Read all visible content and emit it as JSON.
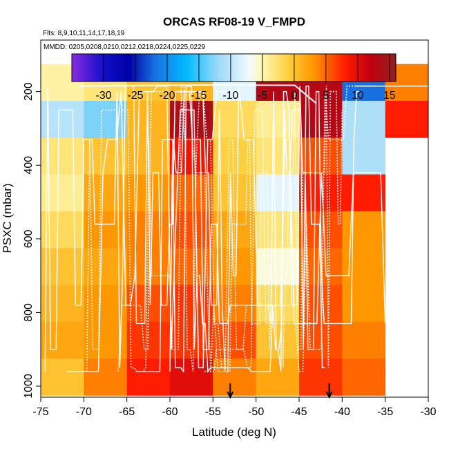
{
  "chart_data": {
    "type": "heatmap",
    "title": "ORCAS RF08-19 V_FMPD",
    "subtitle_flights": "Flts: 8,9,10,11,14,17,18,19",
    "subtitle_dates": "MMDD: 0205,0208,0210,0212,0218,0224,0225,0229",
    "xlabel": "Latitude (deg N)",
    "ylabel": "PSXC (mbar)",
    "xlim": [
      -75,
      -30
    ],
    "ylim": [
      1030,
      60
    ],
    "x_ticks": [
      "-75",
      "-70",
      "-65",
      "-60",
      "-55",
      "-50",
      "-45",
      "-40",
      "-35",
      "-30"
    ],
    "y_ticks": [
      "200",
      "400",
      "600",
      "800",
      "1000"
    ],
    "colorbar": {
      "range": [
        -35,
        16
      ],
      "ticks": [
        "-30",
        "-25",
        "-20",
        "-15",
        "-10",
        "-5",
        "0",
        "5",
        "10",
        "15"
      ],
      "stops": [
        {
          "v": -35,
          "c": "#8a2be2"
        },
        {
          "v": -30,
          "c": "#1010c8"
        },
        {
          "v": -26,
          "c": "#0000a8"
        },
        {
          "v": -22,
          "c": "#1870e0"
        },
        {
          "v": -17,
          "c": "#00bbff"
        },
        {
          "v": -12,
          "c": "#9cd8f8"
        },
        {
          "v": -7,
          "c": "#f4fbff"
        },
        {
          "v": -5,
          "c": "#fff7b0"
        },
        {
          "v": -1,
          "c": "#ffd040"
        },
        {
          "v": 3,
          "c": "#ff9800"
        },
        {
          "v": 8,
          "c": "#ff1c00"
        },
        {
          "v": 12,
          "c": "#c00010"
        },
        {
          "v": 16,
          "c": "#902020"
        }
      ]
    },
    "lat_bins": [
      -75,
      -70,
      -65,
      -60,
      -55,
      -50,
      -45,
      -40,
      -35,
      -30
    ],
    "p_bins": [
      125,
      225,
      325,
      425,
      525,
      625,
      725,
      825,
      925,
      1025
    ],
    "grid_values": [
      [
        -4.5,
        -3,
        0,
        1,
        -8,
        13,
        13,
        -22,
        4
      ],
      [
        -10.5,
        -13,
        1,
        14,
        -2,
        -4,
        13,
        -11,
        8
      ],
      [
        -3,
        0,
        1,
        9,
        -1,
        -3,
        6,
        -11,
        null
      ],
      [
        -4,
        2,
        3,
        5,
        0,
        -8,
        8,
        8,
        null
      ],
      [
        -2,
        3,
        4,
        6,
        2,
        -3,
        6,
        3,
        null
      ],
      [
        0,
        2,
        4,
        5,
        3,
        -6,
        5,
        3,
        null
      ],
      [
        1,
        3,
        6,
        7,
        4,
        -2,
        6,
        3,
        null
      ],
      [
        2,
        3,
        7,
        7,
        6,
        0,
        6,
        4,
        null
      ],
      [
        0,
        4,
        8,
        10,
        4,
        2,
        7,
        5,
        null
      ],
      [
        -4,
        -6,
        8,
        10,
        2,
        0,
        10,
        7,
        null
      ]
    ],
    "arrow_markers_lat": [
      -53,
      -41.5
    ],
    "flight_track_style": "white lines"
  }
}
